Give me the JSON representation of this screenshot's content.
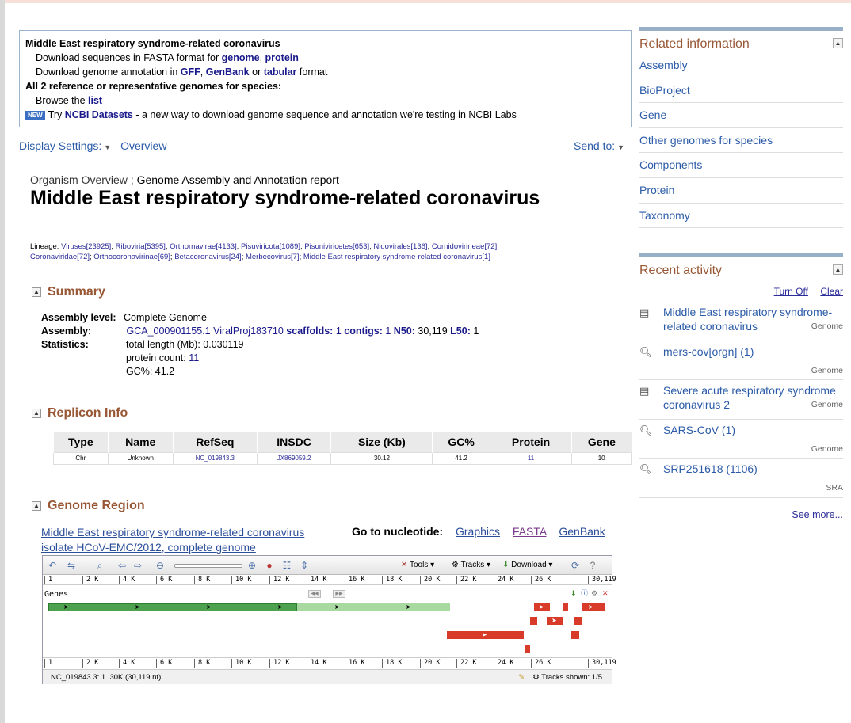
{
  "download_box": {
    "title": "Middle East respiratory syndrome-related coronavirus",
    "line1_prefix": "Download sequences in FASTA format for",
    "genome_link": "genome",
    "comma": ",",
    "protein_link": "protein",
    "line2_prefix": "Download genome annotation in",
    "gff_link": "GFF",
    "genbank_link": "GenBank",
    "or": "or",
    "tabular_link": "tabular",
    "format": "format",
    "all_genomes": "All 2 reference or representative genomes for species:",
    "browse_prefix": "Browse the",
    "list_link": "list",
    "new_badge": "NEW",
    "try_prefix": "Try",
    "datasets_link": "NCBI Datasets",
    "datasets_suffix": " - a new way to download genome sequence and annotation we're testing in NCBI Labs"
  },
  "toolbar": {
    "display_settings": "Display Settings:",
    "overview": "Overview",
    "send_to": "Send to:"
  },
  "header": {
    "organism_overview": "Organism Overview",
    "sep": " ; ",
    "report": "Genome Assembly and Annotation report",
    "title": "Middle East respiratory syndrome-related coronavirus"
  },
  "lineage": {
    "label": "Lineage:",
    "items": [
      "Viruses[23925]",
      "Riboviria[5395]",
      "Orthornavirae[4133]",
      "Pisuviricota[1089]",
      "Pisoniviricetes[653]",
      "Nidovirales[136]",
      "Cornidovirineae[72]",
      "Coronaviridae[72]",
      "Orthocoronavirinae[69]",
      "Betacoronavirus[24]",
      "Merbecovirus[7]",
      "Middle East respiratory syndrome-related coronavirus[1]"
    ]
  },
  "summary": {
    "heading": "Summary",
    "toggle": "▲",
    "assembly_level_label": "Assembly level:",
    "assembly_level": "Complete Genome",
    "assembly_label": "Assembly:",
    "assembly_acc": "GCA_000901155.1",
    "assembly_name": "ViralProj183710",
    "scaffolds_label": "scaffolds:",
    "scaffolds": "1",
    "contigs_label": "contigs:",
    "contigs": "1",
    "n50_label": "N50:",
    "n50": "30,119",
    "l50_label": "L50:",
    "l50": "1",
    "statistics_label": "Statistics:",
    "total_length": "total length (Mb): 0.030119",
    "protein_count_label": "protein count:",
    "protein_count": "11",
    "gc": "GC%: 41.2"
  },
  "replicon": {
    "heading": "Replicon Info",
    "columns": [
      "Type",
      "Name",
      "RefSeq",
      "INSDC",
      "Size (Kb)",
      "GC%",
      "Protein",
      "Gene"
    ],
    "row": [
      "Chr",
      "Unknown",
      "NC_019843.3",
      "JX869059.2",
      "30.12",
      "41.2",
      "11",
      "10"
    ]
  },
  "genome_region": {
    "heading": "Genome Region",
    "link_line1": "Middle East respiratory syndrome-related coronavirus",
    "link_line2": "isolate HCoV-EMC/2012, complete genome",
    "goto_label": "Go to nucleotide:",
    "graphics": "Graphics",
    "fasta": "FASTA",
    "genbank": "GenBank"
  },
  "viewer": {
    "tools": "Tools",
    "tracks": "Tracks",
    "download": "Download",
    "ruler_labels": [
      "1",
      "2 K",
      "4 K",
      "6 K",
      "8 K",
      "10 K",
      "12 K",
      "14 K",
      "16 K",
      "18 K",
      "20 K",
      "22 K",
      "24 K",
      "26 K",
      "30,119"
    ],
    "genes_label": "Genes",
    "status_left": "NC_019843.3: 1..30K (30,119 nt)",
    "status_right": "Tracks shown: 1/5"
  },
  "related": {
    "heading": "Related information",
    "items": [
      "Assembly",
      "BioProject",
      "Gene",
      "Other genomes for species",
      "Components",
      "Protein",
      "Taxonomy"
    ]
  },
  "recent": {
    "heading": "Recent activity",
    "turn_off": "Turn Off",
    "clear": "Clear",
    "items": [
      {
        "text": "Middle East respiratory syndrome-related coronavirus",
        "db": "Genome",
        "icon": "document-icon"
      },
      {
        "text": "mers-cov[orgn] (1)",
        "db": "Genome",
        "icon": "search-icon"
      },
      {
        "text": "Severe acute respiratory syndrome coronavirus 2",
        "db": "Genome",
        "icon": "document-icon"
      },
      {
        "text": "SARS-CoV (1)",
        "db": "Genome",
        "icon": "search-icon"
      },
      {
        "text": "SRP251618 (1106)",
        "db": "SRA",
        "icon": "search-icon"
      }
    ],
    "see_more": "See more..."
  }
}
